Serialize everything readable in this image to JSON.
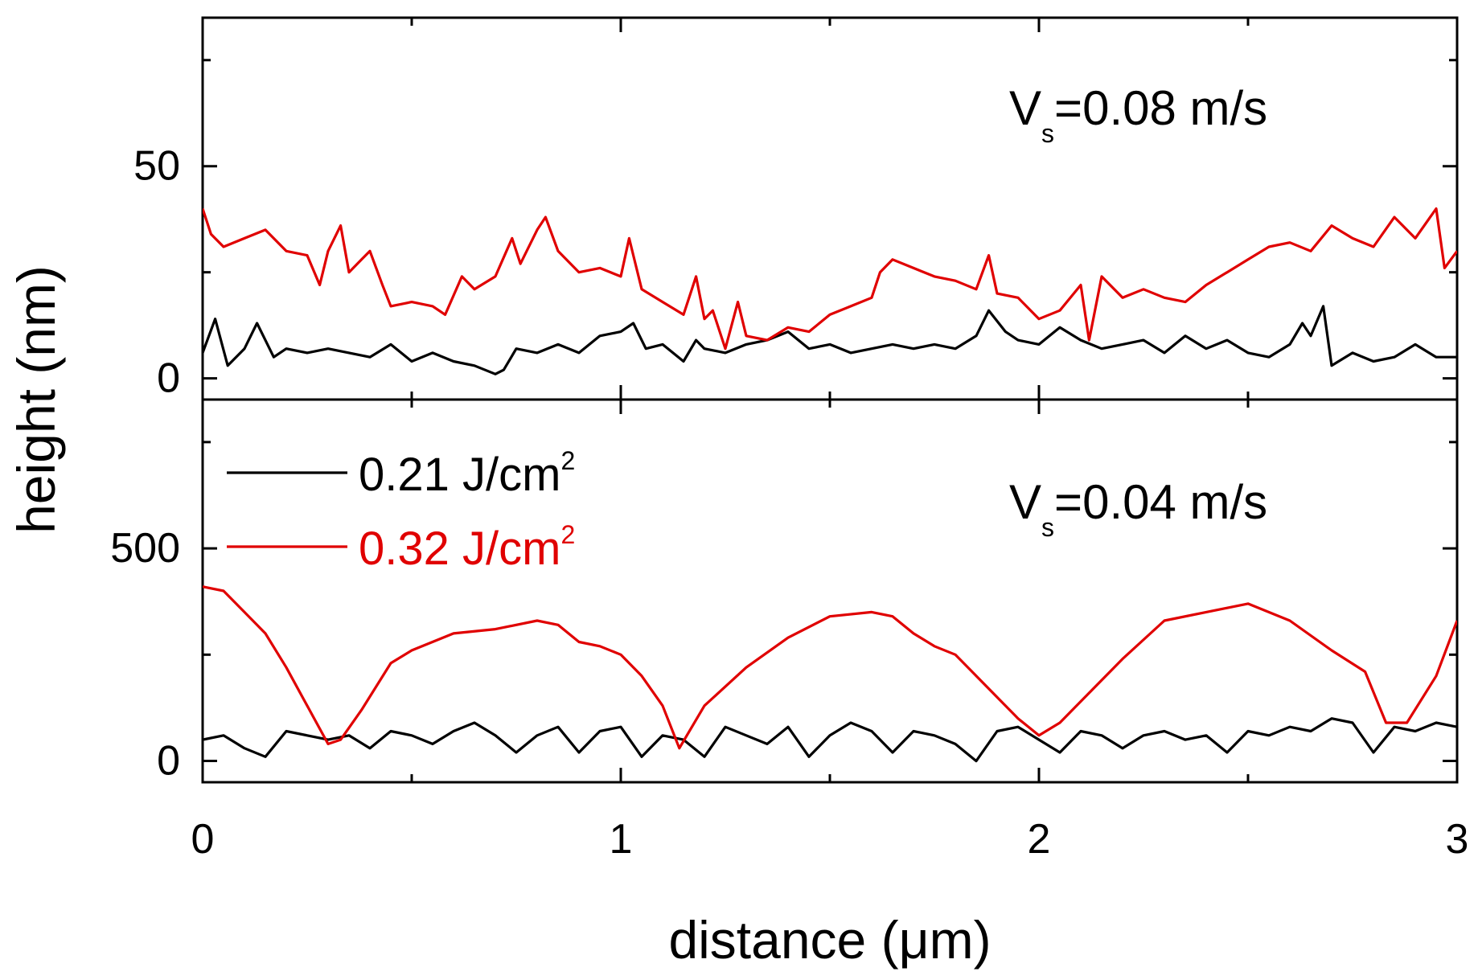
{
  "chart_data": [
    {
      "panel": "top",
      "type": "line",
      "title": "",
      "annotation": {
        "prefix": "V",
        "sub": "s",
        "rest": "=0.08 m/s"
      },
      "xlabel": "distance (μm)",
      "ylabel": "height (nm)",
      "xlim": [
        0,
        3
      ],
      "ylim": [
        -5,
        85
      ],
      "yticks": [
        0,
        50
      ],
      "ytick_labels": [
        "0",
        "50"
      ],
      "yminor": [
        25,
        75
      ],
      "series": [
        {
          "name": "0.21 J/cm2",
          "color": "#000000",
          "x": [
            0,
            0.03,
            0.06,
            0.1,
            0.13,
            0.17,
            0.2,
            0.25,
            0.3,
            0.35,
            0.4,
            0.45,
            0.5,
            0.55,
            0.6,
            0.65,
            0.7,
            0.72,
            0.75,
            0.8,
            0.85,
            0.9,
            0.95,
            1.0,
            1.03,
            1.06,
            1.1,
            1.15,
            1.18,
            1.2,
            1.25,
            1.3,
            1.35,
            1.4,
            1.45,
            1.5,
            1.55,
            1.6,
            1.65,
            1.7,
            1.75,
            1.8,
            1.85,
            1.88,
            1.92,
            1.95,
            2.0,
            2.05,
            2.1,
            2.15,
            2.2,
            2.25,
            2.3,
            2.35,
            2.4,
            2.45,
            2.5,
            2.55,
            2.6,
            2.63,
            2.65,
            2.68,
            2.7,
            2.75,
            2.8,
            2.85,
            2.9,
            2.95,
            3.0
          ],
          "values": [
            6,
            14,
            3,
            7,
            13,
            5,
            7,
            6,
            7,
            6,
            5,
            8,
            4,
            6,
            4,
            3,
            1,
            2,
            7,
            6,
            8,
            6,
            10,
            11,
            13,
            7,
            8,
            4,
            9,
            7,
            6,
            8,
            9,
            11,
            7,
            8,
            6,
            7,
            8,
            7,
            8,
            7,
            10,
            16,
            11,
            9,
            8,
            12,
            9,
            7,
            8,
            9,
            6,
            10,
            7,
            9,
            6,
            5,
            8,
            13,
            10,
            17,
            3,
            6,
            4,
            5,
            8,
            5,
            5
          ]
        },
        {
          "name": "0.32 J/cm2",
          "color": "#e00000",
          "x": [
            0,
            0.02,
            0.05,
            0.1,
            0.15,
            0.2,
            0.25,
            0.28,
            0.3,
            0.33,
            0.35,
            0.38,
            0.4,
            0.43,
            0.45,
            0.5,
            0.55,
            0.58,
            0.62,
            0.65,
            0.7,
            0.74,
            0.76,
            0.8,
            0.82,
            0.85,
            0.9,
            0.95,
            1.0,
            1.02,
            1.03,
            1.05,
            1.1,
            1.15,
            1.18,
            1.2,
            1.22,
            1.25,
            1.28,
            1.3,
            1.35,
            1.4,
            1.45,
            1.5,
            1.55,
            1.6,
            1.62,
            1.65,
            1.7,
            1.75,
            1.8,
            1.85,
            1.88,
            1.9,
            1.95,
            2.0,
            2.05,
            2.1,
            2.12,
            2.15,
            2.2,
            2.25,
            2.3,
            2.35,
            2.4,
            2.45,
            2.5,
            2.55,
            2.6,
            2.65,
            2.7,
            2.75,
            2.8,
            2.85,
            2.9,
            2.95,
            2.97,
            3.0
          ],
          "values": [
            40,
            34,
            31,
            33,
            35,
            30,
            29,
            22,
            30,
            36,
            25,
            28,
            30,
            22,
            17,
            18,
            17,
            15,
            24,
            21,
            24,
            33,
            27,
            35,
            38,
            30,
            25,
            26,
            24,
            33,
            29,
            21,
            18,
            15,
            24,
            14,
            16,
            7,
            18,
            10,
            9,
            12,
            11,
            15,
            17,
            19,
            25,
            28,
            26,
            24,
            23,
            21,
            29,
            20,
            19,
            14,
            16,
            22,
            9,
            24,
            19,
            21,
            19,
            18,
            22,
            25,
            28,
            31,
            32,
            30,
            36,
            33,
            31,
            38,
            33,
            40,
            26,
            30
          ]
        }
      ]
    },
    {
      "panel": "bottom",
      "type": "line",
      "title": "",
      "annotation": {
        "prefix": "V",
        "sub": "s",
        "rest": "=0.04 m/s"
      },
      "xlabel": "distance (μm)",
      "ylabel": "height (nm)",
      "xlim": [
        0,
        3
      ],
      "ylim": [
        -50,
        850
      ],
      "xticks": [
        0,
        1,
        2,
        3
      ],
      "xtick_labels": [
        "0",
        "1",
        "2",
        "3"
      ],
      "xminor": [
        0.5,
        1.5,
        2.5
      ],
      "yticks": [
        0,
        500
      ],
      "ytick_labels": [
        "0",
        "500"
      ],
      "yminor": [
        250,
        750
      ],
      "legend": {
        "position": "top-left",
        "entries": [
          {
            "label": "0.21 J/cm",
            "sup": "2",
            "color": "#000000"
          },
          {
            "label": "0.32 J/cm",
            "sup": "2",
            "color": "#e00000"
          }
        ]
      },
      "series": [
        {
          "name": "0.21 J/cm2",
          "color": "#000000",
          "x": [
            0,
            0.05,
            0.1,
            0.15,
            0.2,
            0.25,
            0.3,
            0.35,
            0.4,
            0.45,
            0.5,
            0.55,
            0.6,
            0.65,
            0.7,
            0.75,
            0.8,
            0.85,
            0.9,
            0.95,
            1.0,
            1.05,
            1.1,
            1.15,
            1.2,
            1.25,
            1.3,
            1.35,
            1.4,
            1.45,
            1.5,
            1.55,
            1.6,
            1.65,
            1.7,
            1.75,
            1.8,
            1.85,
            1.9,
            1.95,
            2.0,
            2.05,
            2.1,
            2.15,
            2.2,
            2.25,
            2.3,
            2.35,
            2.4,
            2.45,
            2.5,
            2.55,
            2.6,
            2.65,
            2.7,
            2.75,
            2.8,
            2.85,
            2.9,
            2.95,
            3.0
          ],
          "values": [
            50,
            60,
            30,
            10,
            70,
            60,
            50,
            60,
            30,
            70,
            60,
            40,
            70,
            90,
            60,
            20,
            60,
            80,
            20,
            70,
            80,
            10,
            60,
            50,
            10,
            80,
            60,
            40,
            80,
            10,
            60,
            90,
            70,
            20,
            70,
            60,
            40,
            0,
            70,
            80,
            50,
            20,
            70,
            60,
            30,
            60,
            70,
            50,
            60,
            20,
            70,
            60,
            80,
            70,
            100,
            90,
            20,
            80,
            70,
            90,
            80
          ]
        },
        {
          "name": "0.32 J/cm2",
          "color": "#e00000",
          "x": [
            0,
            0.05,
            0.1,
            0.15,
            0.2,
            0.25,
            0.3,
            0.33,
            0.38,
            0.45,
            0.5,
            0.6,
            0.7,
            0.8,
            0.85,
            0.9,
            0.95,
            1.0,
            1.05,
            1.1,
            1.14,
            1.2,
            1.3,
            1.4,
            1.5,
            1.6,
            1.65,
            1.7,
            1.75,
            1.8,
            1.9,
            1.95,
            2.0,
            2.05,
            2.1,
            2.2,
            2.3,
            2.4,
            2.45,
            2.5,
            2.6,
            2.7,
            2.78,
            2.83,
            2.88,
            2.95,
            3.0
          ],
          "values": [
            410,
            400,
            350,
            300,
            220,
            130,
            40,
            50,
            120,
            230,
            260,
            300,
            310,
            330,
            320,
            280,
            270,
            250,
            200,
            130,
            30,
            130,
            220,
            290,
            340,
            350,
            340,
            300,
            270,
            250,
            150,
            100,
            60,
            90,
            140,
            240,
            330,
            350,
            360,
            370,
            330,
            260,
            210,
            90,
            90,
            200,
            330
          ]
        }
      ]
    }
  ]
}
